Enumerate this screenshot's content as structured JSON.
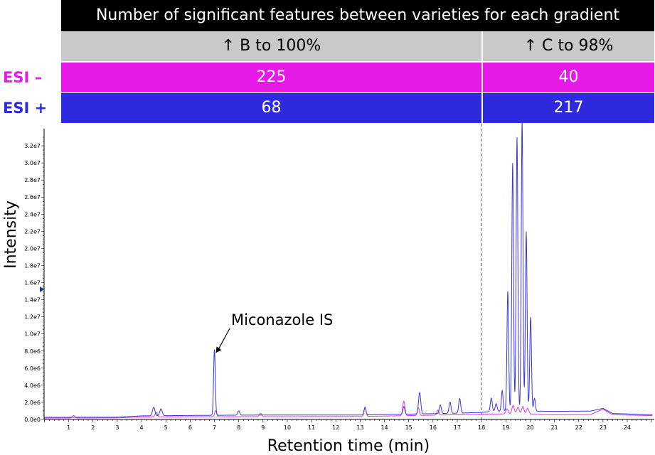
{
  "table": {
    "title": "Number of significant features between varieties for each gradient",
    "headers": [
      "↑ B to 100%",
      "↑ C to 98%"
    ],
    "rows": [
      {
        "label": "ESI –",
        "color": "#e619e6",
        "values": [
          "225",
          "40"
        ]
      },
      {
        "label": "ESI +",
        "color": "#2f29e0",
        "values": [
          "68",
          "217"
        ]
      }
    ]
  },
  "chart_data": {
    "type": "line",
    "xlabel": "Retention time (min)",
    "ylabel": "Intensity",
    "xlim": [
      0,
      25
    ],
    "ylim": [
      0,
      34000000
    ],
    "x_ticks": [
      "1",
      "2",
      "3",
      "4",
      "5",
      "6",
      "7",
      "8",
      "9",
      "10",
      "11",
      "12",
      "13",
      "14",
      "15",
      "16",
      "17",
      "18",
      "19",
      "20",
      "21",
      "22",
      "23",
      "24"
    ],
    "y_ticks": [
      "0.0e0",
      "2.0e6",
      "4.0e6",
      "6.0e6",
      "8.0e6",
      "1.0e7",
      "1.2e7",
      "1.4e7",
      "1.6e7",
      "1.8e7",
      "2.0e7",
      "2.2e7",
      "2.4e7",
      "2.6e7",
      "2.8e7",
      "3.0e7",
      "3.2e7"
    ],
    "y_tick_values": [
      0,
      2000000,
      4000000,
      6000000,
      8000000,
      10000000,
      12000000,
      14000000,
      16000000,
      18000000,
      20000000,
      22000000,
      24000000,
      26000000,
      28000000,
      30000000,
      32000000
    ],
    "divider_x": 18.0,
    "annotation": {
      "text": "Miconazole IS",
      "x": 7.0,
      "y": 7700000
    },
    "series": [
      {
        "name": "ESI +",
        "color": "#3b36d8",
        "baseline": [
          [
            0,
            250000
          ],
          [
            3,
            260000
          ],
          [
            4,
            420000
          ],
          [
            6,
            470000
          ],
          [
            9,
            520000
          ],
          [
            13,
            520000
          ],
          [
            15,
            620000
          ],
          [
            17,
            740000
          ],
          [
            18,
            820000
          ],
          [
            18.6,
            950000
          ],
          [
            19,
            1000000
          ],
          [
            21,
            950000
          ],
          [
            22.5,
            980000
          ],
          [
            23,
            1300000
          ],
          [
            23.4,
            700000
          ],
          [
            25,
            550000
          ]
        ],
        "peaks": [
          [
            4.5,
            1000000,
            0.05
          ],
          [
            4.8,
            800000,
            0.05
          ],
          [
            7.0,
            7700000,
            0.035
          ],
          [
            8.0,
            500000,
            0.04
          ],
          [
            13.2,
            850000,
            0.04
          ],
          [
            14.8,
            900000,
            0.04
          ],
          [
            15.45,
            2500000,
            0.045
          ],
          [
            16.3,
            1000000,
            0.04
          ],
          [
            16.7,
            1300000,
            0.04
          ],
          [
            17.1,
            1700000,
            0.04
          ],
          [
            18.4,
            1600000,
            0.04
          ],
          [
            18.6,
            900000,
            0.04
          ],
          [
            18.85,
            2400000,
            0.035
          ],
          [
            19.08,
            14000000,
            0.035
          ],
          [
            19.28,
            29000000,
            0.035
          ],
          [
            19.46,
            32000000,
            0.035
          ],
          [
            19.67,
            34000000,
            0.035
          ],
          [
            19.84,
            21000000,
            0.035
          ],
          [
            20.02,
            11000000,
            0.035
          ],
          [
            20.18,
            1500000,
            0.035
          ]
        ]
      },
      {
        "name": "ESI –",
        "color": "#d63bd6",
        "baseline": [
          [
            0,
            150000
          ],
          [
            3,
            180000
          ],
          [
            4,
            300000
          ],
          [
            6,
            320000
          ],
          [
            9,
            330000
          ],
          [
            13,
            350000
          ],
          [
            15,
            450000
          ],
          [
            17,
            550000
          ],
          [
            18,
            620000
          ],
          [
            19,
            650000
          ],
          [
            21,
            550000
          ],
          [
            22.5,
            580000
          ],
          [
            23,
            1200000
          ],
          [
            23.4,
            550000
          ],
          [
            25,
            450000
          ]
        ],
        "peaks": [
          [
            1.2,
            300000,
            0.05
          ],
          [
            4.6,
            500000,
            0.05
          ],
          [
            7.05,
            700000,
            0.04
          ],
          [
            8.9,
            400000,
            0.05
          ],
          [
            13.2,
            1100000,
            0.04
          ],
          [
            14.8,
            1700000,
            0.045
          ],
          [
            15.4,
            900000,
            0.04
          ],
          [
            16.2,
            600000,
            0.04
          ],
          [
            19.05,
            600000,
            0.05
          ],
          [
            19.3,
            1000000,
            0.05
          ],
          [
            19.5,
            800000,
            0.05
          ],
          [
            19.7,
            900000,
            0.05
          ],
          [
            19.9,
            700000,
            0.05
          ]
        ]
      }
    ]
  }
}
